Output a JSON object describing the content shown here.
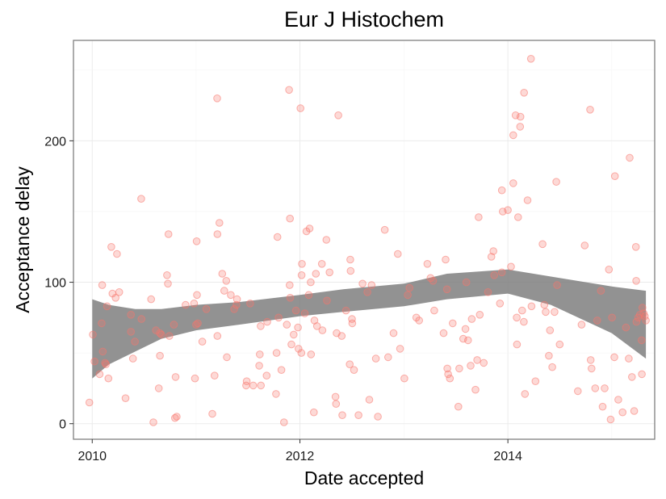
{
  "chart_data": {
    "type": "scatter",
    "title": "Eur J Histochem",
    "xlabel": "Date accepted",
    "ylabel": "Acceptance delay",
    "x_ticks": [
      "2010",
      "2012",
      "2014"
    ],
    "y_ticks": [
      "0",
      "100",
      "200"
    ],
    "xlim": [
      "2009-10-27",
      "2015-06-01"
    ],
    "ylim": [
      -11,
      271
    ],
    "grid": true,
    "point_color": "#f8766d",
    "ribbon_color": "#7f7f7f",
    "points": [
      [
        "2009-12-22",
        15
      ],
      [
        "2010-01-03",
        63
      ],
      [
        "2010-01-09",
        44
      ],
      [
        "2010-01-27",
        35
      ],
      [
        "2010-02-03",
        71
      ],
      [
        "2010-02-05",
        98
      ],
      [
        "2010-02-07",
        51
      ],
      [
        "2010-02-15",
        43
      ],
      [
        "2010-02-18",
        42
      ],
      [
        "2010-02-22",
        83
      ],
      [
        "2010-02-27",
        32
      ],
      [
        "2010-03-09",
        125
      ],
      [
        "2010-03-13",
        92
      ],
      [
        "2010-03-24",
        89
      ],
      [
        "2010-03-29",
        120
      ],
      [
        "2010-04-06",
        93
      ],
      [
        "2010-04-28",
        18
      ],
      [
        "2010-05-17",
        77
      ],
      [
        "2010-05-17",
        65
      ],
      [
        "2010-05-24",
        46
      ],
      [
        "2010-05-31",
        58
      ],
      [
        "2010-06-22",
        159
      ],
      [
        "2010-06-23",
        74
      ],
      [
        "2010-07-27",
        88
      ],
      [
        "2010-08-04",
        1
      ],
      [
        "2010-08-13",
        66
      ],
      [
        "2010-08-23",
        25
      ],
      [
        "2010-08-27",
        48
      ],
      [
        "2010-08-27",
        64
      ],
      [
        "2010-09-01",
        63
      ],
      [
        "2010-09-21",
        105
      ],
      [
        "2010-09-24",
        99
      ],
      [
        "2010-09-26",
        134
      ],
      [
        "2010-09-29",
        62
      ],
      [
        "2010-10-15",
        70
      ],
      [
        "2010-10-19",
        4
      ],
      [
        "2010-10-21",
        33
      ],
      [
        "2010-10-25",
        5
      ],
      [
        "2010-11-25",
        84
      ],
      [
        "2010-12-25",
        85
      ],
      [
        "2010-12-28",
        32
      ],
      [
        "2011-01-01",
        70
      ],
      [
        "2011-01-03",
        129
      ],
      [
        "2011-01-04",
        91
      ],
      [
        "2011-01-07",
        71
      ],
      [
        "2011-01-23",
        58
      ],
      [
        "2011-02-06",
        81
      ],
      [
        "2011-02-27",
        7
      ],
      [
        "2011-03-07",
        34
      ],
      [
        "2011-03-16",
        230
      ],
      [
        "2011-03-17",
        62
      ],
      [
        "2011-03-17",
        134
      ],
      [
        "2011-03-24",
        142
      ],
      [
        "2011-04-03",
        106
      ],
      [
        "2011-04-10",
        94
      ],
      [
        "2011-04-17",
        101
      ],
      [
        "2011-04-19",
        47
      ],
      [
        "2011-05-03",
        91
      ],
      [
        "2011-05-15",
        81
      ],
      [
        "2011-05-23",
        84
      ],
      [
        "2011-05-25",
        88
      ],
      [
        "2011-06-26",
        27
      ],
      [
        "2011-06-28",
        30
      ],
      [
        "2011-07-10",
        85
      ],
      [
        "2011-07-21",
        27
      ],
      [
        "2011-08-11",
        41
      ],
      [
        "2011-08-13",
        49
      ],
      [
        "2011-08-16",
        69
      ],
      [
        "2011-08-17",
        27
      ],
      [
        "2011-09-06",
        34
      ],
      [
        "2011-09-08",
        72
      ],
      [
        "2011-10-09",
        21
      ],
      [
        "2011-10-11",
        50
      ],
      [
        "2011-10-14",
        132
      ],
      [
        "2011-10-18",
        75
      ],
      [
        "2011-10-28",
        38
      ],
      [
        "2011-11-06",
        1
      ],
      [
        "2011-11-16",
        70
      ],
      [
        "2011-11-24",
        236
      ],
      [
        "2011-11-26",
        98
      ],
      [
        "2011-11-27",
        145
      ],
      [
        "2011-11-28",
        89
      ],
      [
        "2011-12-02",
        56
      ],
      [
        "2011-12-10",
        63
      ],
      [
        "2011-12-18",
        80
      ],
      [
        "2011-12-25",
        68
      ],
      [
        "2011-12-27",
        53
      ],
      [
        "2012-01-03",
        223
      ],
      [
        "2012-01-06",
        50
      ],
      [
        "2012-01-07",
        105
      ],
      [
        "2012-01-08",
        113
      ],
      [
        "2012-01-18",
        78
      ],
      [
        "2012-01-24",
        136
      ],
      [
        "2012-02-01",
        91
      ],
      [
        "2012-02-04",
        138
      ],
      [
        "2012-02-08",
        100
      ],
      [
        "2012-02-09",
        49
      ],
      [
        "2012-02-19",
        8
      ],
      [
        "2012-02-21",
        73
      ],
      [
        "2012-02-26",
        106
      ],
      [
        "2012-03-01",
        69
      ],
      [
        "2012-03-18",
        113
      ],
      [
        "2012-03-20",
        66
      ],
      [
        "2012-04-03",
        130
      ],
      [
        "2012-04-05",
        87
      ],
      [
        "2012-04-14",
        107
      ],
      [
        "2012-05-05",
        19
      ],
      [
        "2012-05-07",
        14
      ],
      [
        "2012-05-09",
        64
      ],
      [
        "2012-05-15",
        218
      ],
      [
        "2012-05-27",
        62
      ],
      [
        "2012-05-29",
        6
      ],
      [
        "2012-06-11",
        80
      ],
      [
        "2012-06-24",
        42
      ],
      [
        "2012-06-26",
        116
      ],
      [
        "2012-06-27",
        108
      ],
      [
        "2012-07-02",
        74
      ],
      [
        "2012-07-03",
        71
      ],
      [
        "2012-07-09",
        38
      ],
      [
        "2012-07-25",
        6
      ],
      [
        "2012-08-08",
        99
      ],
      [
        "2012-08-25",
        93
      ],
      [
        "2012-09-01",
        17
      ],
      [
        "2012-09-09",
        98
      ],
      [
        "2012-09-24",
        46
      ],
      [
        "2012-10-01",
        5
      ],
      [
        "2012-10-25",
        137
      ],
      [
        "2012-11-06",
        47
      ],
      [
        "2012-11-25",
        64
      ],
      [
        "2012-12-10",
        120
      ],
      [
        "2012-12-18",
        53
      ],
      [
        "2013-01-02",
        32
      ],
      [
        "2013-01-14",
        91
      ],
      [
        "2013-01-20",
        96
      ],
      [
        "2013-02-13",
        75
      ],
      [
        "2013-02-23",
        73
      ],
      [
        "2013-03-24",
        113
      ],
      [
        "2013-04-04",
        103
      ],
      [
        "2013-04-13",
        101
      ],
      [
        "2013-04-17",
        80
      ],
      [
        "2013-05-20",
        64
      ],
      [
        "2013-05-27",
        116
      ],
      [
        "2013-06-01",
        95
      ],
      [
        "2013-06-02",
        39
      ],
      [
        "2013-06-05",
        35
      ],
      [
        "2013-06-11",
        32
      ],
      [
        "2013-06-21",
        71
      ],
      [
        "2013-07-11",
        12
      ],
      [
        "2013-07-14",
        39
      ],
      [
        "2013-07-28",
        60
      ],
      [
        "2013-08-05",
        67
      ],
      [
        "2013-08-08",
        100
      ],
      [
        "2013-08-14",
        59
      ],
      [
        "2013-08-23",
        41
      ],
      [
        "2013-08-27",
        74
      ],
      [
        "2013-09-09",
        24
      ],
      [
        "2013-09-15",
        45
      ],
      [
        "2013-09-20",
        146
      ],
      [
        "2013-09-24",
        77
      ],
      [
        "2013-10-08",
        43
      ],
      [
        "2013-10-23",
        93
      ],
      [
        "2013-11-04",
        118
      ],
      [
        "2013-11-11",
        122
      ],
      [
        "2013-11-14",
        105
      ],
      [
        "2013-12-04",
        85
      ],
      [
        "2013-12-11",
        107
      ],
      [
        "2013-12-11",
        165
      ],
      [
        "2013-12-14",
        150
      ],
      [
        "2014-01-01",
        151
      ],
      [
        "2014-01-12",
        111
      ],
      [
        "2014-01-20",
        204
      ],
      [
        "2014-01-20",
        170
      ],
      [
        "2014-01-28",
        218
      ],
      [
        "2014-02-01",
        75
      ],
      [
        "2014-02-02",
        56
      ],
      [
        "2014-02-06",
        146
      ],
      [
        "2014-02-13",
        210
      ],
      [
        "2014-02-14",
        217
      ],
      [
        "2014-02-20",
        80
      ],
      [
        "2014-02-26",
        72
      ],
      [
        "2014-02-27",
        234
      ],
      [
        "2014-03-02",
        21
      ],
      [
        "2014-03-11",
        158
      ],
      [
        "2014-03-23",
        258
      ],
      [
        "2014-03-25",
        83
      ],
      [
        "2014-04-08",
        30
      ],
      [
        "2014-05-03",
        127
      ],
      [
        "2014-05-09",
        84
      ],
      [
        "2014-05-14",
        79
      ],
      [
        "2014-05-25",
        48
      ],
      [
        "2014-05-29",
        66
      ],
      [
        "2014-06-06",
        40
      ],
      [
        "2014-06-14",
        79
      ],
      [
        "2014-06-20",
        171
      ],
      [
        "2014-06-23",
        98
      ],
      [
        "2014-07-02",
        56
      ],
      [
        "2014-09-04",
        23
      ],
      [
        "2014-09-17",
        70
      ],
      [
        "2014-09-28",
        126
      ],
      [
        "2014-10-17",
        222
      ],
      [
        "2014-10-19",
        45
      ],
      [
        "2014-10-22",
        39
      ],
      [
        "2014-11-04",
        25
      ],
      [
        "2014-11-11",
        73
      ],
      [
        "2014-11-24",
        94
      ],
      [
        "2014-11-30",
        12
      ],
      [
        "2014-12-07",
        25
      ],
      [
        "2014-12-22",
        109
      ],
      [
        "2014-12-28",
        3
      ],
      [
        "2015-01-02",
        75
      ],
      [
        "2015-01-10",
        47
      ],
      [
        "2015-01-12",
        175
      ],
      [
        "2015-01-24",
        17
      ],
      [
        "2015-02-08",
        8
      ],
      [
        "2015-02-20",
        68
      ],
      [
        "2015-03-02",
        46
      ],
      [
        "2015-03-05",
        188
      ],
      [
        "2015-03-13",
        33
      ],
      [
        "2015-03-21",
        9
      ],
      [
        "2015-03-27",
        125
      ],
      [
        "2015-03-28",
        101
      ],
      [
        "2015-03-29",
        72
      ],
      [
        "2015-04-04",
        75
      ],
      [
        "2015-04-10",
        77
      ],
      [
        "2015-04-16",
        59
      ],
      [
        "2015-04-17",
        35
      ],
      [
        "2015-04-19",
        82
      ],
      [
        "2015-04-23",
        78
      ],
      [
        "2015-04-27",
        76
      ],
      [
        "2015-05-01",
        73
      ]
    ],
    "smooth": [
      {
        "x": "2010-01-01",
        "fit": 61,
        "upper": 88,
        "lower": 32
      },
      {
        "x": "2010-03-01",
        "fit": 65,
        "upper": 84,
        "lower": 42
      },
      {
        "x": "2010-06-01",
        "fit": 69,
        "upper": 81,
        "lower": 51
      },
      {
        "x": "2010-09-01",
        "fit": 72,
        "upper": 81,
        "lower": 60
      },
      {
        "x": "2011-01-01",
        "fit": 74,
        "upper": 84,
        "lower": 66
      },
      {
        "x": "2011-06-01",
        "fit": 77,
        "upper": 86,
        "lower": 70
      },
      {
        "x": "2012-01-01",
        "fit": 84,
        "upper": 91,
        "lower": 76
      },
      {
        "x": "2012-06-01",
        "fit": 87,
        "upper": 95,
        "lower": 79
      },
      {
        "x": "2013-01-01",
        "fit": 91,
        "upper": 99,
        "lower": 83
      },
      {
        "x": "2013-06-01",
        "fit": 97,
        "upper": 106,
        "lower": 88
      },
      {
        "x": "2014-01-01",
        "fit": 100,
        "upper": 109,
        "lower": 92
      },
      {
        "x": "2014-06-01",
        "fit": 94,
        "upper": 104,
        "lower": 84
      },
      {
        "x": "2015-01-01",
        "fit": 82,
        "upper": 97,
        "lower": 64
      },
      {
        "x": "2015-05-01",
        "fit": 70,
        "upper": 94,
        "lower": 46
      }
    ]
  }
}
